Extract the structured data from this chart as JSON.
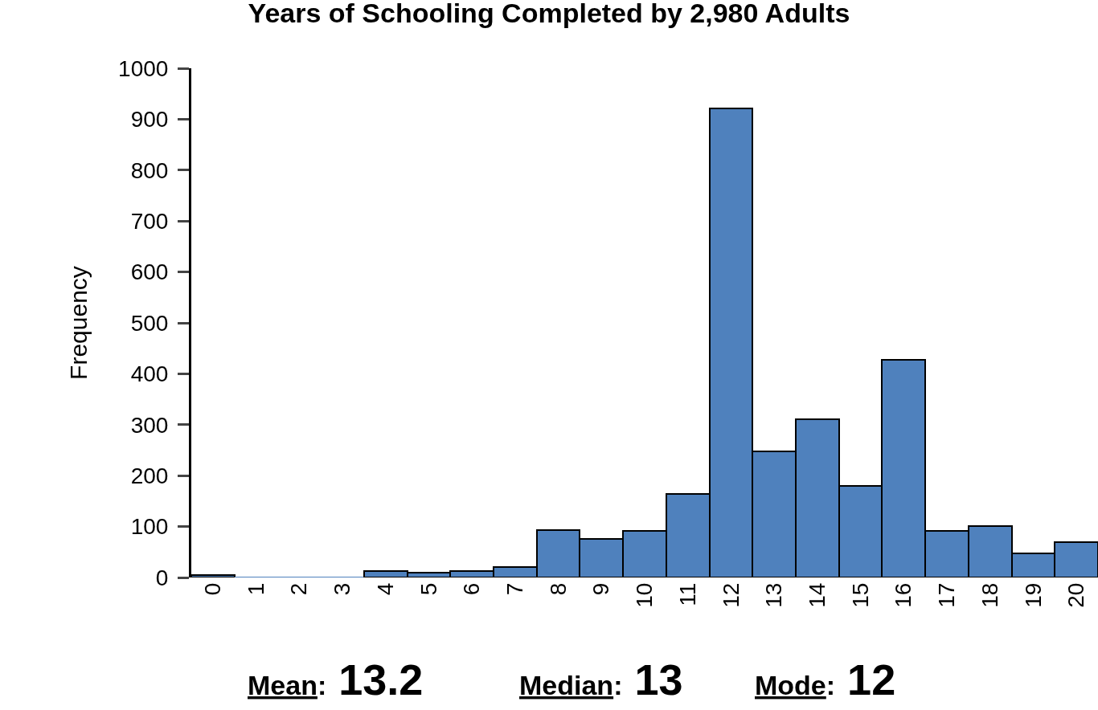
{
  "chart_data": {
    "type": "bar",
    "title": "Years of Schooling Completed by 2,980 Adults",
    "ylabel": "Frequency",
    "categories": [
      "0",
      "1",
      "2",
      "3",
      "4",
      "5",
      "6",
      "7",
      "8",
      "9",
      "10",
      "11",
      "12",
      "13",
      "14",
      "15",
      "16",
      "17",
      "18",
      "19",
      "20"
    ],
    "values": [
      4,
      0,
      0,
      0,
      12,
      9,
      13,
      20,
      93,
      75,
      91,
      164,
      921,
      247,
      311,
      180,
      428,
      91,
      101,
      47,
      69
    ],
    "color": "#4f81bd",
    "ylim": [
      0,
      1000
    ],
    "yticks": [
      0,
      100,
      200,
      300,
      400,
      500,
      600,
      700,
      800,
      900,
      1000
    ],
    "annotations": [
      "Mean: 13.2",
      "Median: 13",
      "Mode: 12"
    ]
  }
}
